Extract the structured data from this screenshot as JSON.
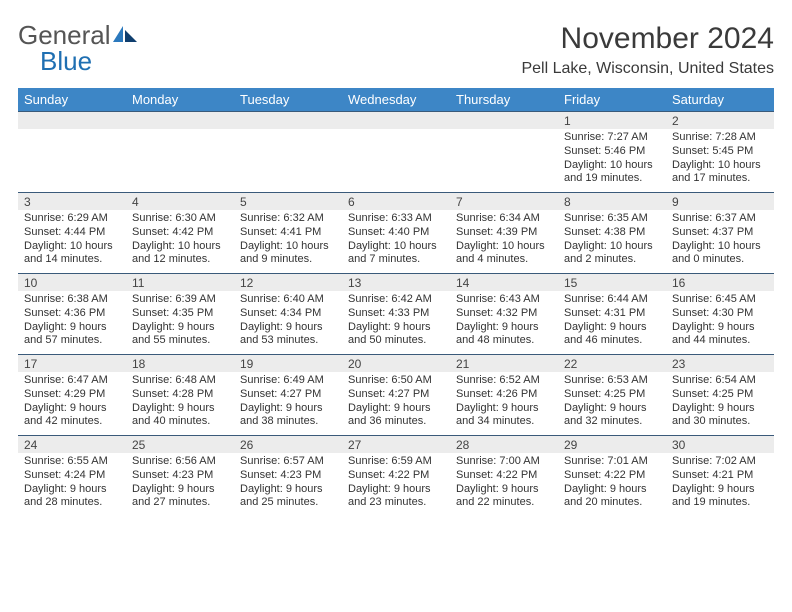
{
  "logo": {
    "word1": "General",
    "word2": "Blue",
    "brand_color": "#1f6fb2"
  },
  "title": "November 2024",
  "location": "Pell Lake, Wisconsin, United States",
  "colors": {
    "header_bg": "#3d86c6",
    "header_text": "#ffffff",
    "date_bg": "#ececec",
    "date_border": "#3a5a7a",
    "text": "#333333",
    "background": "#ffffff"
  },
  "typography": {
    "title_fontsize": 30,
    "location_fontsize": 16,
    "dayheader_fontsize": 13,
    "date_fontsize": 12,
    "info_fontsize": 11
  },
  "day_headers": [
    "Sunday",
    "Monday",
    "Tuesday",
    "Wednesday",
    "Thursday",
    "Friday",
    "Saturday"
  ],
  "weeks": [
    {
      "dates": [
        "",
        "",
        "",
        "",
        "",
        "1",
        "2"
      ],
      "info": [
        "",
        "",
        "",
        "",
        "",
        "Sunrise: 7:27 AM\nSunset: 5:46 PM\nDaylight: 10 hours and 19 minutes.",
        "Sunrise: 7:28 AM\nSunset: 5:45 PM\nDaylight: 10 hours and 17 minutes."
      ]
    },
    {
      "dates": [
        "3",
        "4",
        "5",
        "6",
        "7",
        "8",
        "9"
      ],
      "info": [
        "Sunrise: 6:29 AM\nSunset: 4:44 PM\nDaylight: 10 hours and 14 minutes.",
        "Sunrise: 6:30 AM\nSunset: 4:42 PM\nDaylight: 10 hours and 12 minutes.",
        "Sunrise: 6:32 AM\nSunset: 4:41 PM\nDaylight: 10 hours and 9 minutes.",
        "Sunrise: 6:33 AM\nSunset: 4:40 PM\nDaylight: 10 hours and 7 minutes.",
        "Sunrise: 6:34 AM\nSunset: 4:39 PM\nDaylight: 10 hours and 4 minutes.",
        "Sunrise: 6:35 AM\nSunset: 4:38 PM\nDaylight: 10 hours and 2 minutes.",
        "Sunrise: 6:37 AM\nSunset: 4:37 PM\nDaylight: 10 hours and 0 minutes."
      ]
    },
    {
      "dates": [
        "10",
        "11",
        "12",
        "13",
        "14",
        "15",
        "16"
      ],
      "info": [
        "Sunrise: 6:38 AM\nSunset: 4:36 PM\nDaylight: 9 hours and 57 minutes.",
        "Sunrise: 6:39 AM\nSunset: 4:35 PM\nDaylight: 9 hours and 55 minutes.",
        "Sunrise: 6:40 AM\nSunset: 4:34 PM\nDaylight: 9 hours and 53 minutes.",
        "Sunrise: 6:42 AM\nSunset: 4:33 PM\nDaylight: 9 hours and 50 minutes.",
        "Sunrise: 6:43 AM\nSunset: 4:32 PM\nDaylight: 9 hours and 48 minutes.",
        "Sunrise: 6:44 AM\nSunset: 4:31 PM\nDaylight: 9 hours and 46 minutes.",
        "Sunrise: 6:45 AM\nSunset: 4:30 PM\nDaylight: 9 hours and 44 minutes."
      ]
    },
    {
      "dates": [
        "17",
        "18",
        "19",
        "20",
        "21",
        "22",
        "23"
      ],
      "info": [
        "Sunrise: 6:47 AM\nSunset: 4:29 PM\nDaylight: 9 hours and 42 minutes.",
        "Sunrise: 6:48 AM\nSunset: 4:28 PM\nDaylight: 9 hours and 40 minutes.",
        "Sunrise: 6:49 AM\nSunset: 4:27 PM\nDaylight: 9 hours and 38 minutes.",
        "Sunrise: 6:50 AM\nSunset: 4:27 PM\nDaylight: 9 hours and 36 minutes.",
        "Sunrise: 6:52 AM\nSunset: 4:26 PM\nDaylight: 9 hours and 34 minutes.",
        "Sunrise: 6:53 AM\nSunset: 4:25 PM\nDaylight: 9 hours and 32 minutes.",
        "Sunrise: 6:54 AM\nSunset: 4:25 PM\nDaylight: 9 hours and 30 minutes."
      ]
    },
    {
      "dates": [
        "24",
        "25",
        "26",
        "27",
        "28",
        "29",
        "30"
      ],
      "info": [
        "Sunrise: 6:55 AM\nSunset: 4:24 PM\nDaylight: 9 hours and 28 minutes.",
        "Sunrise: 6:56 AM\nSunset: 4:23 PM\nDaylight: 9 hours and 27 minutes.",
        "Sunrise: 6:57 AM\nSunset: 4:23 PM\nDaylight: 9 hours and 25 minutes.",
        "Sunrise: 6:59 AM\nSunset: 4:22 PM\nDaylight: 9 hours and 23 minutes.",
        "Sunrise: 7:00 AM\nSunset: 4:22 PM\nDaylight: 9 hours and 22 minutes.",
        "Sunrise: 7:01 AM\nSunset: 4:22 PM\nDaylight: 9 hours and 20 minutes.",
        "Sunrise: 7:02 AM\nSunset: 4:21 PM\nDaylight: 9 hours and 19 minutes."
      ]
    }
  ]
}
